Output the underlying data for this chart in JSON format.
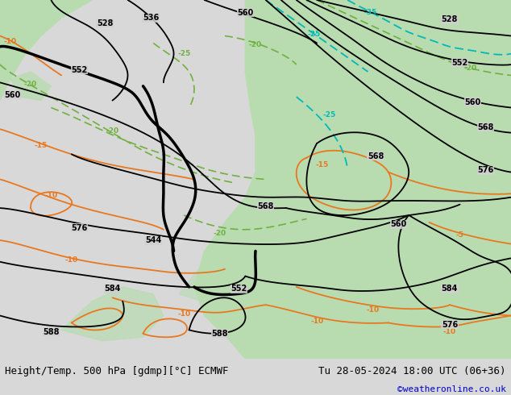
{
  "title_left": "Height/Temp. 500 hPa [gdmp][°C] ECMWF",
  "title_right": "Tu 28-05-2024 18:00 UTC (06+36)",
  "credit": "©weatheronline.co.uk",
  "bg_color": "#d8d8d8",
  "land_green": "#b8dcb0",
  "sea_gray": "#d0d0d0",
  "title_fontsize": 9,
  "credit_fontsize": 8,
  "credit_color": "#0000cc",
  "figsize": [
    6.34,
    4.9
  ],
  "dpi": 100
}
